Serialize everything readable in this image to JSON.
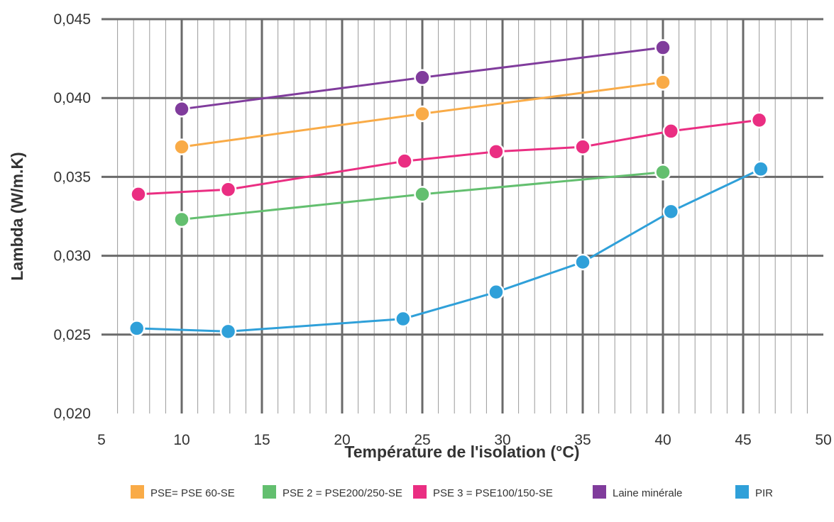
{
  "chart_data": {
    "type": "line",
    "title": "",
    "xlabel": "Température de l'isolation (°C)",
    "ylabel": "Lambda (W/m.K)",
    "xlim": [
      5,
      50
    ],
    "ylim": [
      0.02,
      0.045
    ],
    "x_ticks": [
      5,
      10,
      15,
      20,
      25,
      30,
      35,
      40,
      45,
      50
    ],
    "x_tick_labels": [
      "5",
      "10",
      "15",
      "20",
      "25",
      "30",
      "35",
      "40",
      "45",
      "50"
    ],
    "y_ticks": [
      0.02,
      0.025,
      0.03,
      0.035,
      0.04,
      0.045
    ],
    "y_tick_labels": [
      "0,020",
      "0,025",
      "0,030",
      "0,035",
      "0,040",
      "0,045"
    ],
    "grid": true,
    "legend_position": "bottom",
    "series": [
      {
        "name": "PSE= PSE 60-SE",
        "color": "#f9ab47",
        "x": [
          10,
          25,
          40
        ],
        "y": [
          0.0369,
          0.039,
          0.041
        ]
      },
      {
        "name": "PSE 2 = PSE200/250-SE",
        "color": "#63bf6f",
        "x": [
          10,
          25,
          40
        ],
        "y": [
          0.0323,
          0.0339,
          0.0353
        ]
      },
      {
        "name": "PSE 3 = PSE100/150-SE",
        "color": "#ea2e82",
        "x": [
          7.3,
          12.9,
          23.9,
          29.6,
          35,
          40.5,
          46
        ],
        "y": [
          0.0339,
          0.0342,
          0.036,
          0.0366,
          0.0369,
          0.0379,
          0.0386
        ]
      },
      {
        "name": "Laine minérale",
        "color": "#803c9c",
        "x": [
          10,
          25,
          40
        ],
        "y": [
          0.0393,
          0.0413,
          0.0432
        ]
      },
      {
        "name": "PIR",
        "color": "#2fa0d9",
        "x": [
          7.2,
          12.9,
          23.8,
          29.6,
          35,
          40.5,
          46.1
        ],
        "y": [
          0.0254,
          0.0252,
          0.026,
          0.0277,
          0.0296,
          0.0328,
          0.0355
        ]
      }
    ]
  }
}
